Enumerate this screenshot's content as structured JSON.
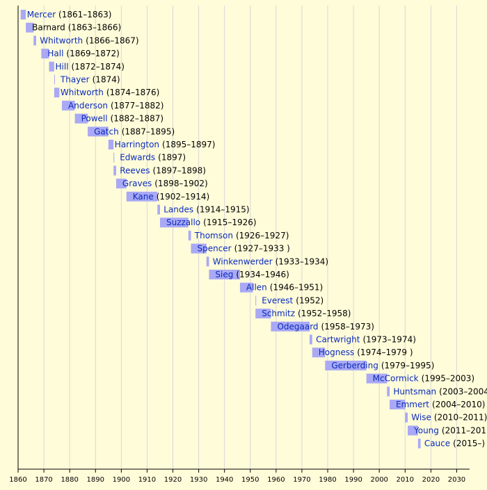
{
  "chart_data": {
    "type": "timeline",
    "xlim": [
      1860,
      2035
    ],
    "xticks": [
      1860,
      1870,
      1880,
      1890,
      1900,
      1910,
      1920,
      1930,
      1940,
      1950,
      1960,
      1970,
      1980,
      1990,
      2000,
      2010,
      2020,
      2030
    ],
    "grid": true,
    "bar_color": "#a9a9f5",
    "name_color": "#0a2bbd",
    "items": [
      {
        "name": "Mercer",
        "period": "(1861–1863)",
        "start": 1861,
        "end": 1863
      },
      {
        "name": "Barnard",
        "period": "(1863–1866)",
        "start": 1863,
        "end": 1866,
        "name_color": "#000000"
      },
      {
        "name": "Whitworth",
        "period": "(1866–1867)",
        "start": 1866,
        "end": 1867
      },
      {
        "name": "Hall",
        "period": "(1869–1872)",
        "start": 1869,
        "end": 1872
      },
      {
        "name": "Hill",
        "period": "(1872–1874)",
        "start": 1872,
        "end": 1874
      },
      {
        "name": "Thayer",
        "period": "(1874)",
        "start": 1874,
        "end": 1874
      },
      {
        "name": "Whitworth",
        "period": "(1874–1876)",
        "start": 1874,
        "end": 1876
      },
      {
        "name": "Anderson",
        "period": "(1877–1882)",
        "start": 1877,
        "end": 1882
      },
      {
        "name": "Powell",
        "period": "(1882–1887)",
        "start": 1882,
        "end": 1887
      },
      {
        "name": "Gatch",
        "period": "(1887–1895)",
        "start": 1887,
        "end": 1895
      },
      {
        "name": "Harrington",
        "period": "(1895–1897)",
        "start": 1895,
        "end": 1897
      },
      {
        "name": "Edwards",
        "period": "(1897)",
        "start": 1897,
        "end": 1897
      },
      {
        "name": "Reeves",
        "period": "(1897–1898)",
        "start": 1897,
        "end": 1898
      },
      {
        "name": "Graves",
        "period": "(1898–1902)",
        "start": 1898,
        "end": 1902
      },
      {
        "name": "Kane",
        "period": "(1902–1914)",
        "start": 1902,
        "end": 1914
      },
      {
        "name": "Landes",
        "period": "(1914–1915)",
        "start": 1914,
        "end": 1915
      },
      {
        "name": "Suzzallo",
        "period": "(1915–1926)",
        "start": 1915,
        "end": 1926
      },
      {
        "name": "Thomson",
        "period": "(1926–1927)",
        "start": 1926,
        "end": 1927
      },
      {
        "name": "Spencer",
        "period": "(1927–1933 )",
        "start": 1927,
        "end": 1933
      },
      {
        "name": "Winkenwerder",
        "period": "(1933–1934)",
        "start": 1933,
        "end": 1934
      },
      {
        "name": "Sieg",
        "period": "(1934–1946)",
        "start": 1934,
        "end": 1946
      },
      {
        "name": "Allen",
        "period": "(1946–1951)",
        "start": 1946,
        "end": 1951
      },
      {
        "name": "Everest",
        "period": "(1952)",
        "start": 1952,
        "end": 1952
      },
      {
        "name": "Schmitz",
        "period": "(1952–1958)",
        "start": 1952,
        "end": 1958
      },
      {
        "name": "Odegaard",
        "period": "(1958–1973)",
        "start": 1958,
        "end": 1973
      },
      {
        "name": "Cartwright",
        "period": "(1973–1974)",
        "start": 1973,
        "end": 1974
      },
      {
        "name": "Hogness",
        "period": "(1974–1979 )",
        "start": 1974,
        "end": 1979
      },
      {
        "name": "Gerberding",
        "period": "(1979–1995)",
        "start": 1979,
        "end": 1995
      },
      {
        "name": "McCormick",
        "period": "(1995–2003)",
        "start": 1995,
        "end": 2003
      },
      {
        "name": "Huntsman",
        "period": "(2003–2004",
        "start": 2003,
        "end": 2004
      },
      {
        "name": "Emmert",
        "period": "(2004–2010)",
        "start": 2004,
        "end": 2010
      },
      {
        "name": "Wise",
        "period": "(2010–2011)",
        "start": 2010,
        "end": 2011
      },
      {
        "name": "Young",
        "period": "(2011–201",
        "start": 2011,
        "end": 2015
      },
      {
        "name": "Cauce",
        "period": "(2015–)",
        "start": 2015,
        "end": 2016
      }
    ]
  }
}
